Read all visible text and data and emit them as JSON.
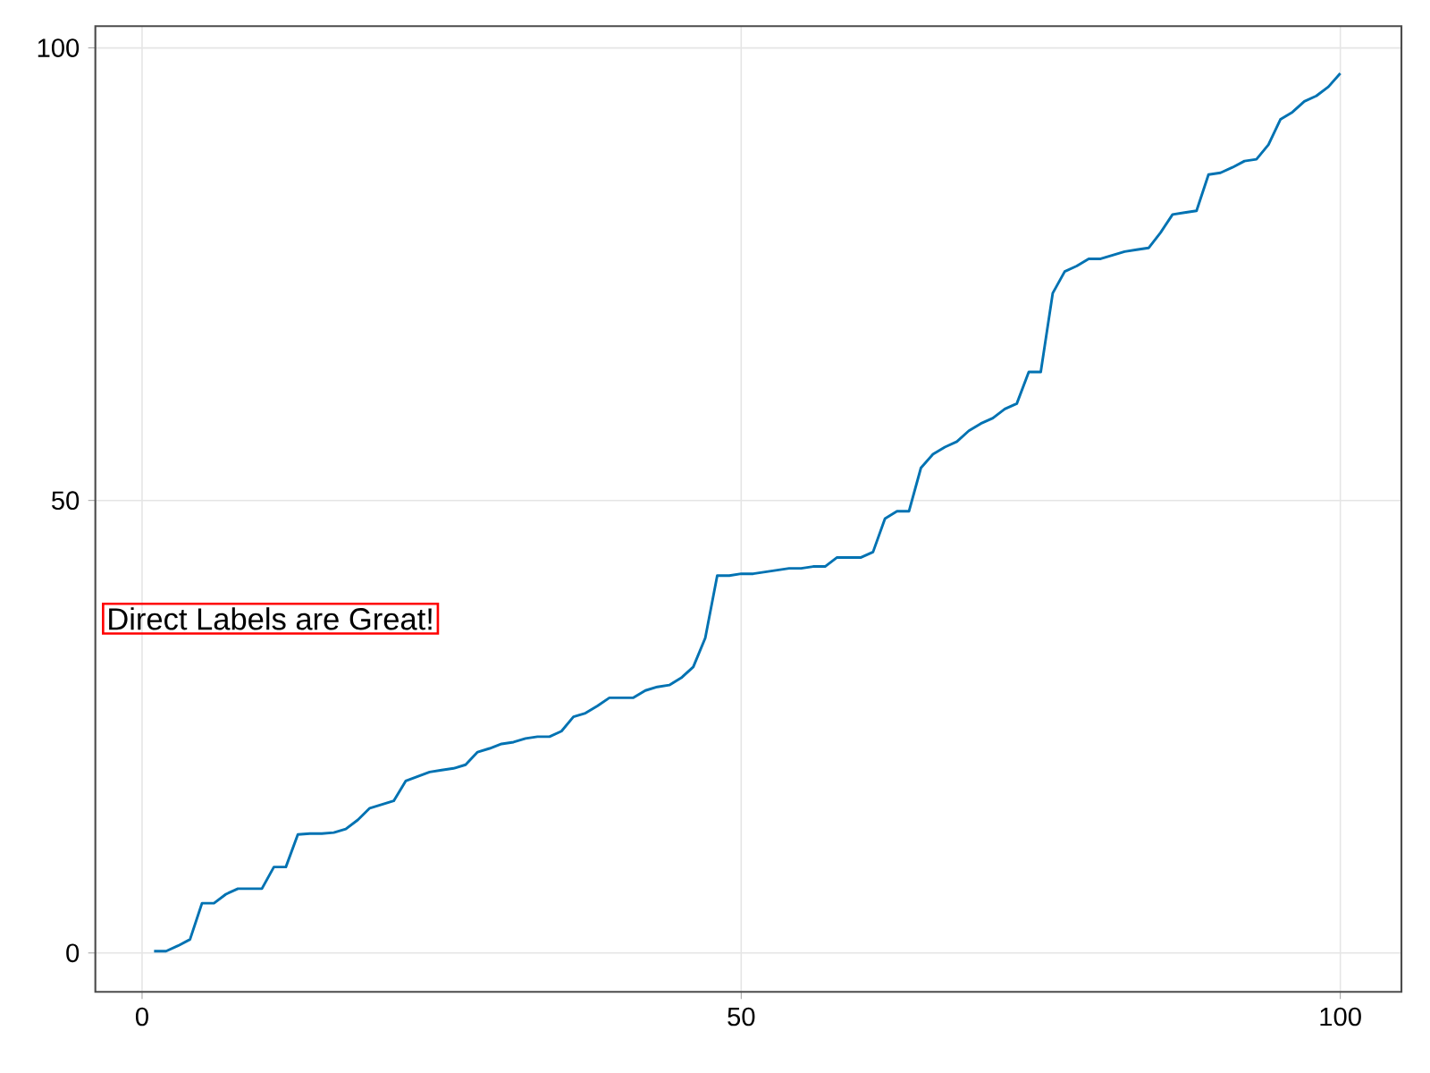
{
  "chart_data": {
    "type": "line",
    "x": [
      1,
      2,
      3,
      4,
      5,
      6,
      7,
      8,
      9,
      10,
      11,
      12,
      13,
      14,
      15,
      16,
      17,
      18,
      19,
      20,
      21,
      22,
      23,
      24,
      25,
      26,
      27,
      28,
      29,
      30,
      31,
      32,
      33,
      34,
      35,
      36,
      37,
      38,
      39,
      40,
      41,
      42,
      43,
      44,
      45,
      46,
      47,
      48,
      49,
      50,
      51,
      52,
      53,
      54,
      55,
      56,
      57,
      58,
      59,
      60,
      61,
      62,
      63,
      64,
      65,
      66,
      67,
      68,
      69,
      70,
      71,
      72,
      73,
      74,
      75,
      76,
      77,
      78,
      79,
      80,
      81,
      82,
      83,
      84,
      85,
      86,
      87,
      88,
      89,
      90,
      91,
      92,
      93,
      94,
      95,
      96,
      97,
      98,
      99,
      100
    ],
    "values": [
      0.2,
      0.2,
      0.8,
      1.5,
      5.5,
      5.5,
      6.5,
      7.1,
      7.1,
      7.1,
      9.5,
      9.5,
      13.1,
      13.2,
      13.2,
      13.3,
      13.7,
      14.7,
      16.0,
      16.4,
      16.8,
      19.0,
      19.5,
      20.0,
      20.2,
      20.4,
      20.8,
      22.2,
      22.6,
      23.1,
      23.3,
      23.7,
      23.9,
      23.9,
      24.5,
      26.1,
      26.5,
      27.3,
      28.2,
      28.2,
      28.2,
      29.0,
      29.4,
      29.6,
      30.4,
      31.6,
      34.8,
      41.7,
      41.7,
      41.9,
      41.9,
      42.1,
      42.3,
      42.5,
      42.5,
      42.7,
      42.7,
      43.7,
      43.7,
      43.7,
      44.3,
      48.0,
      48.8,
      48.8,
      53.6,
      55.1,
      55.9,
      56.5,
      57.7,
      58.5,
      59.1,
      60.1,
      60.7,
      64.2,
      64.2,
      72.9,
      75.3,
      75.9,
      76.7,
      76.7,
      77.1,
      77.5,
      77.7,
      77.9,
      79.6,
      81.6,
      81.8,
      82.0,
      86.0,
      86.2,
      86.8,
      87.5,
      87.7,
      89.3,
      92.1,
      92.9,
      94.1,
      94.7,
      95.7,
      97.2
    ],
    "color": "#0072b2",
    "xlim": [
      -3.9,
      105.1
    ],
    "ylim": [
      -4.3,
      102.4
    ],
    "xticks": [
      0,
      50,
      100
    ],
    "yticks": [
      0,
      50,
      100
    ],
    "grid": true,
    "line_style": "solid",
    "marker": "none",
    "annotations": [
      "Direct Labels are Great!"
    ]
  }
}
